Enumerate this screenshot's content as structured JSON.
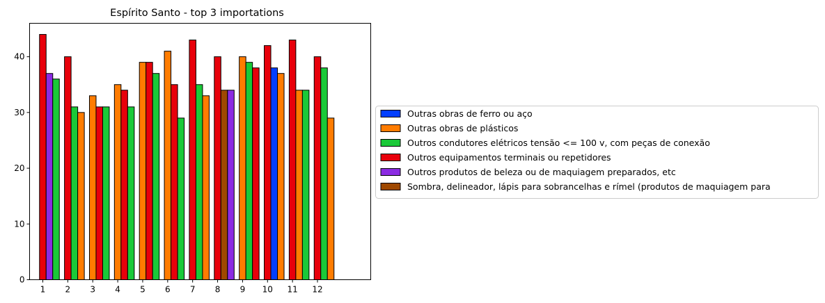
{
  "chart_data": {
    "type": "bar",
    "title": "Espírito Santo - top 3 importations",
    "xlabel": "",
    "ylabel": "",
    "categories": [
      "1",
      "2",
      "3",
      "4",
      "5",
      "6",
      "7",
      "8",
      "9",
      "10",
      "11",
      "12"
    ],
    "ylim": [
      0,
      46
    ],
    "yticks": [
      0,
      10,
      20,
      30,
      40
    ],
    "grid": false,
    "legend_position": "center-right outside",
    "series": [
      {
        "name": "Outras obras de ferro ou aço",
        "color": "#023eff"
      },
      {
        "name": "Outras obras de plásticos",
        "color": "#ff7c00"
      },
      {
        "name": "Outros condutores elétricos tensão <= 100 v, com peças de conexão",
        "color": "#1ac938"
      },
      {
        "name": "Outros equipamentos terminais ou repetidores",
        "color": "#e8000b"
      },
      {
        "name": "Outros produtos de beleza ou de maquiagem preparados, etc",
        "color": "#8b2be2"
      },
      {
        "name": "Sombra, delineador, lápis para sobrancelhas e rímel (produtos de maquiagem para",
        "color": "#9f4800"
      }
    ],
    "groups": [
      {
        "category": "1",
        "bars": [
          {
            "series": 3,
            "value": 44
          },
          {
            "series": 4,
            "value": 37
          },
          {
            "series": 2,
            "value": 36
          }
        ]
      },
      {
        "category": "2",
        "bars": [
          {
            "series": 3,
            "value": 40
          },
          {
            "series": 2,
            "value": 31
          },
          {
            "series": 1,
            "value": 30
          }
        ]
      },
      {
        "category": "3",
        "bars": [
          {
            "series": 1,
            "value": 33
          },
          {
            "series": 3,
            "value": 31
          },
          {
            "series": 2,
            "value": 31
          }
        ]
      },
      {
        "category": "4",
        "bars": [
          {
            "series": 1,
            "value": 35
          },
          {
            "series": 3,
            "value": 34
          },
          {
            "series": 2,
            "value": 31
          }
        ]
      },
      {
        "category": "5",
        "bars": [
          {
            "series": 1,
            "value": 39
          },
          {
            "series": 3,
            "value": 39
          },
          {
            "series": 2,
            "value": 37
          }
        ]
      },
      {
        "category": "6",
        "bars": [
          {
            "series": 1,
            "value": 41
          },
          {
            "series": 3,
            "value": 35
          },
          {
            "series": 2,
            "value": 29
          }
        ]
      },
      {
        "category": "7",
        "bars": [
          {
            "series": 3,
            "value": 43
          },
          {
            "series": 2,
            "value": 35
          },
          {
            "series": 1,
            "value": 33
          }
        ]
      },
      {
        "category": "8",
        "bars": [
          {
            "series": 3,
            "value": 40
          },
          {
            "series": 5,
            "value": 34
          },
          {
            "series": 4,
            "value": 34
          }
        ]
      },
      {
        "category": "9",
        "bars": [
          {
            "series": 1,
            "value": 40
          },
          {
            "series": 2,
            "value": 39
          },
          {
            "series": 3,
            "value": 38
          }
        ]
      },
      {
        "category": "10",
        "bars": [
          {
            "series": 3,
            "value": 42
          },
          {
            "series": 0,
            "value": 38
          },
          {
            "series": 1,
            "value": 37
          }
        ]
      },
      {
        "category": "11",
        "bars": [
          {
            "series": 3,
            "value": 43
          },
          {
            "series": 1,
            "value": 34
          },
          {
            "series": 2,
            "value": 34
          }
        ]
      },
      {
        "category": "12",
        "bars": [
          {
            "series": 3,
            "value": 40
          },
          {
            "series": 2,
            "value": 38
          },
          {
            "series": 1,
            "value": 29
          }
        ]
      }
    ]
  }
}
